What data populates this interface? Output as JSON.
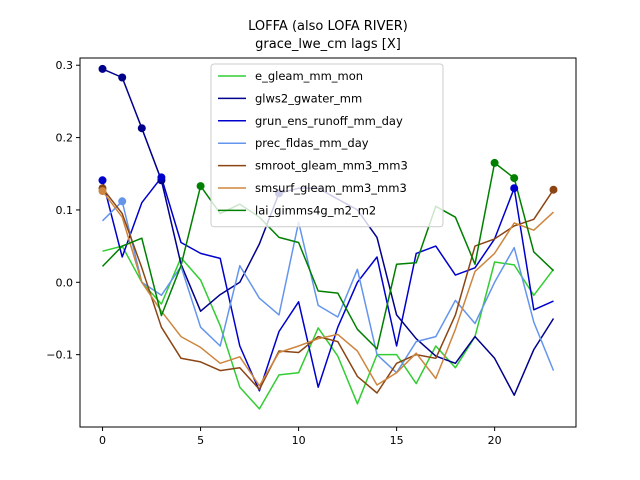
{
  "chart_data": {
    "type": "line",
    "title": "LOFFA (also LOFA RIVER)",
    "subtitle": "grace_lwe_cm lags [X]",
    "xlabel": "",
    "ylabel": "",
    "xlim": [
      -1.15,
      24.15
    ],
    "ylim": [
      -0.2,
      0.31
    ],
    "xticks": [
      0,
      5,
      10,
      15,
      20
    ],
    "yticks": [
      -0.1,
      0.0,
      0.1,
      0.2,
      0.3
    ],
    "ytick_labels": [
      "−0.1",
      "0.0",
      "0.1",
      "0.2",
      "0.3"
    ],
    "grid": false,
    "legend_position": "upper center",
    "x": [
      0,
      1,
      2,
      3,
      4,
      5,
      6,
      7,
      8,
      9,
      10,
      11,
      12,
      13,
      14,
      15,
      16,
      17,
      18,
      19,
      20,
      21,
      22,
      23
    ],
    "series": [
      {
        "name": "e_gleam_mm_mon",
        "color": "#32cd32",
        "values": [
          0.043,
          0.05,
          0.0,
          -0.03,
          0.034,
          0.003,
          -0.06,
          -0.145,
          -0.175,
          -0.128,
          -0.125,
          -0.063,
          -0.102,
          -0.168,
          -0.1,
          -0.1,
          -0.14,
          -0.088,
          -0.118,
          -0.075,
          0.028,
          0.024,
          -0.018,
          0.018
        ],
        "markers": []
      },
      {
        "name": "glws2_gwater_mm",
        "color": "#00008b",
        "values": [
          0.295,
          0.283,
          0.213,
          0.141,
          0.025,
          -0.04,
          -0.017,
          0.0,
          0.053,
          0.123,
          0.13,
          0.13,
          0.115,
          0.1,
          0.062,
          -0.045,
          -0.078,
          -0.102,
          -0.112,
          -0.075,
          -0.105,
          -0.156,
          -0.093,
          -0.05
        ],
        "markers": [
          0,
          1,
          2,
          3,
          9
        ]
      },
      {
        "name": "grun_ens_runoff_mm_day",
        "color": "#0000cd",
        "values": [
          0.141,
          0.035,
          0.11,
          0.145,
          0.055,
          0.04,
          0.033,
          -0.088,
          -0.15,
          -0.068,
          -0.027,
          -0.145,
          -0.062,
          0.0,
          0.035,
          -0.088,
          0.04,
          0.05,
          0.01,
          0.02,
          0.06,
          0.13,
          -0.038,
          -0.026
        ],
        "markers": [
          0,
          3,
          21
        ]
      },
      {
        "name": "prec_fldas_mm_day",
        "color": "#6495ed",
        "values": [
          0.085,
          0.112,
          0.0,
          -0.018,
          0.022,
          -0.062,
          -0.088,
          0.023,
          -0.022,
          -0.045,
          0.083,
          -0.032,
          -0.048,
          0.018,
          -0.1,
          -0.125,
          -0.082,
          -0.075,
          -0.025,
          -0.057,
          0.0,
          0.048,
          -0.055,
          -0.122
        ],
        "markers": [
          1
        ]
      },
      {
        "name": "smroot_gleam_mm3_mm3",
        "color": "#8b4513",
        "values": [
          0.13,
          0.095,
          0.02,
          -0.062,
          -0.105,
          -0.11,
          -0.122,
          -0.118,
          -0.148,
          -0.095,
          -0.097,
          -0.075,
          -0.082,
          -0.13,
          -0.153,
          -0.112,
          -0.1,
          -0.105,
          -0.045,
          0.05,
          0.06,
          0.078,
          0.087,
          0.128
        ],
        "markers": [
          0,
          23
        ]
      },
      {
        "name": "smsurf_gleam_mm3_mm3",
        "color": "#cd853f",
        "values": [
          0.126,
          0.09,
          0.0,
          -0.04,
          -0.075,
          -0.09,
          -0.112,
          -0.103,
          -0.143,
          -0.097,
          -0.088,
          -0.078,
          -0.072,
          -0.095,
          -0.142,
          -0.125,
          -0.098,
          -0.133,
          -0.065,
          0.015,
          0.04,
          0.082,
          0.072,
          0.097
        ],
        "markers": [
          0
        ]
      },
      {
        "name": "lai_gimms4g_m2_m2",
        "color": "#008000",
        "values": [
          0.022,
          0.05,
          0.061,
          -0.046,
          0.023,
          0.133,
          0.095,
          0.108,
          0.09,
          0.062,
          0.055,
          -0.012,
          -0.015,
          -0.065,
          -0.092,
          0.025,
          0.027,
          0.105,
          0.09,
          0.025,
          0.165,
          0.144,
          0.042,
          0.016
        ],
        "markers": [
          5,
          20,
          21
        ]
      }
    ]
  }
}
